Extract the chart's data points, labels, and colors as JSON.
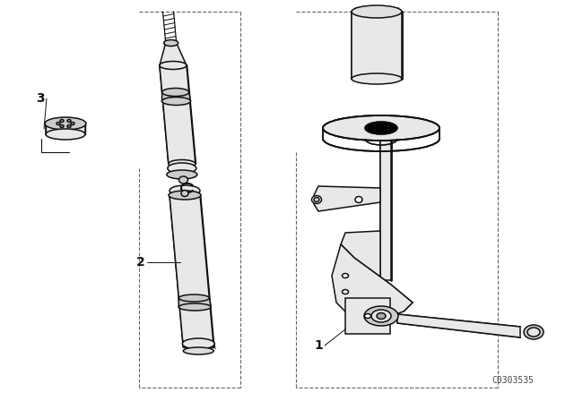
{
  "bg_color": "#ffffff",
  "line_color": "#111111",
  "fill_light": "#e8e8e8",
  "fill_med": "#cccccc",
  "fill_dark": "#aaaaaa",
  "label_1": "1",
  "label_2": "2",
  "label_3": "3",
  "watermark": "C0303535",
  "fig_width": 6.4,
  "fig_height": 4.48,
  "dpi": 100
}
